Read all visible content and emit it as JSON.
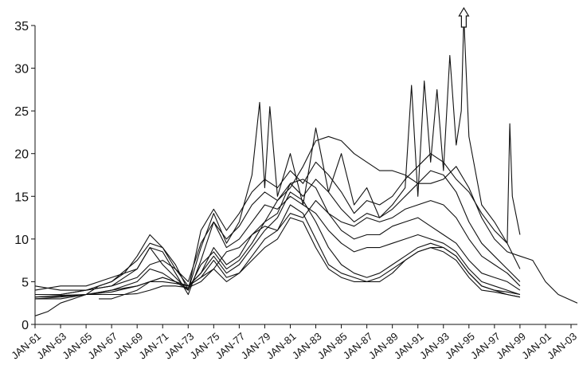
{
  "chart_data": {
    "type": "line",
    "title": "",
    "xlabel": "",
    "ylabel": "",
    "ylim": [
      0,
      35
    ],
    "yticks": [
      "0",
      "5",
      "10",
      "15",
      "20",
      "25",
      "30",
      "35"
    ],
    "xlim": [
      1961,
      2003.5
    ],
    "xticks": [
      {
        "label": "JAN-61",
        "x": 1961
      },
      {
        "label": "JAN-63",
        "x": 1963
      },
      {
        "label": "JAN-65",
        "x": 1965
      },
      {
        "label": "JAN-67",
        "x": 1967
      },
      {
        "label": "JAN-69",
        "x": 1969
      },
      {
        "label": "JAN-71",
        "x": 1971
      },
      {
        "label": "JAN-73",
        "x": 1973
      },
      {
        "label": "JAN-75",
        "x": 1975
      },
      {
        "label": "JAN-77",
        "x": 1977
      },
      {
        "label": "JAN-79",
        "x": 1979
      },
      {
        "label": "JAN-81",
        "x": 1981
      },
      {
        "label": "JAN-83",
        "x": 1983
      },
      {
        "label": "JAN-85",
        "x": 1985
      },
      {
        "label": "JAN-87",
        "x": 1987
      },
      {
        "label": "JAN-89",
        "x": 1989
      },
      {
        "label": "JAN-91",
        "x": 1991
      },
      {
        "label": "JAN-93",
        "x": 1993
      },
      {
        "label": "JAN-95",
        "x": 1995
      },
      {
        "label": "JAN-97",
        "x": 1997
      },
      {
        "label": "JAN-99",
        "x": 1999
      },
      {
        "label": "JAN-01",
        "x": 2001
      },
      {
        "label": "JAN-03",
        "x": 2003
      }
    ],
    "legend": "none",
    "grid": false,
    "line_color": "#111111",
    "annotation": {
      "type": "up-arrow",
      "x": 1994.6,
      "y": 36.5,
      "meaning": "series exceeds the axis maximum"
    },
    "series": [
      {
        "x": [
          1961,
          1963,
          1965,
          1967,
          1968,
          1969,
          1970,
          1971,
          1972,
          1973,
          1974,
          1975,
          1976,
          1977,
          1978,
          1979,
          1980,
          1981,
          1982,
          1983,
          1984,
          1985,
          1986,
          1987,
          1988,
          1989,
          1990,
          1991,
          1992,
          1993,
          1994,
          1995,
          1996,
          1997,
          1998,
          1999,
          2000,
          2001,
          2002,
          2003.5
        ],
        "y": [
          3.2,
          3.4,
          3.5,
          3.5,
          3.5,
          3.6,
          4.0,
          4.5,
          4.5,
          4.3,
          5.0,
          6.5,
          8.5,
          9.0,
          10.5,
          12.0,
          14.5,
          16.0,
          18.5,
          21.5,
          22.0,
          21.5,
          20.0,
          19.0,
          18.0,
          18.0,
          17.5,
          16.5,
          16.5,
          17.0,
          18.5,
          16.0,
          12.5,
          10.0,
          8.5,
          8.0,
          7.5,
          5.0,
          3.5,
          2.5
        ]
      },
      {
        "x": [
          1961,
          1962,
          1963,
          1964,
          1965,
          1966,
          1967,
          1968,
          1969,
          1970,
          1971,
          1972,
          1973,
          1974,
          1975,
          1976,
          1977,
          1978,
          1979,
          1980,
          1981,
          1982,
          1983,
          1984,
          1985,
          1986,
          1987,
          1988,
          1989,
          1990,
          1991,
          1992,
          1993,
          1994,
          1995,
          1996,
          1997,
          1998,
          1999
        ],
        "y": [
          1.0,
          1.5,
          2.5,
          3.0,
          3.5,
          4.5,
          5.0,
          6.0,
          8.0,
          10.5,
          9.0,
          7.0,
          4.0,
          11.0,
          13.5,
          11.0,
          13.0,
          15.5,
          17.0,
          16.0,
          18.0,
          16.5,
          19.0,
          17.5,
          15.5,
          13.0,
          14.5,
          14.0,
          15.0,
          17.0,
          18.5,
          20.0,
          19.0,
          17.0,
          15.5,
          13.0,
          11.0,
          9.5,
          6.5
        ]
      },
      {
        "x": [
          1961,
          1963,
          1965,
          1967,
          1969,
          1970,
          1971,
          1972,
          1973,
          1974,
          1975,
          1976,
          1977,
          1978,
          1979,
          1980,
          1981,
          1982,
          1983,
          1984,
          1985,
          1986,
          1987,
          1988,
          1989,
          1990,
          1991,
          1992,
          1993,
          1994,
          1995,
          1996,
          1997,
          1998,
          1999
        ],
        "y": [
          4.5,
          4.0,
          4.0,
          4.5,
          6.5,
          9.0,
          8.5,
          6.0,
          3.5,
          7.5,
          12.0,
          10.0,
          11.5,
          14.0,
          15.5,
          14.5,
          16.5,
          15.0,
          17.0,
          15.5,
          13.5,
          12.0,
          13.0,
          12.5,
          13.5,
          15.0,
          16.5,
          18.0,
          17.5,
          15.5,
          12.0,
          9.5,
          8.0,
          6.5,
          5.0
        ]
      },
      {
        "x": [
          1961,
          1963,
          1965,
          1967,
          1969,
          1970,
          1971,
          1972,
          1973,
          1974,
          1975,
          1976,
          1977,
          1978,
          1979,
          1980,
          1981,
          1982,
          1983,
          1984,
          1985,
          1986,
          1987,
          1988,
          1989,
          1990,
          1991,
          1992,
          1993,
          1994,
          1995,
          1996,
          1997,
          1998,
          1999
        ],
        "y": [
          3.5,
          3.5,
          4.0,
          5.0,
          7.5,
          9.5,
          9.0,
          6.5,
          4.5,
          6.0,
          9.0,
          7.0,
          8.0,
          10.5,
          11.5,
          11.0,
          13.0,
          12.5,
          14.5,
          13.0,
          12.0,
          11.5,
          12.5,
          12.0,
          12.5,
          13.5,
          14.0,
          14.5,
          14.0,
          12.5,
          10.0,
          8.0,
          7.0,
          6.0,
          4.5
        ]
      },
      {
        "x": [
          1961,
          1963,
          1965,
          1967,
          1969,
          1970,
          1971,
          1972,
          1973,
          1974,
          1975,
          1976,
          1977,
          1978,
          1979,
          1980,
          1981,
          1982,
          1983,
          1984,
          1985,
          1986,
          1987,
          1988,
          1989,
          1990,
          1991,
          1992,
          1993,
          1994,
          1995,
          1996,
          1997,
          1998,
          1999
        ],
        "y": [
          3.0,
          3.0,
          3.5,
          4.0,
          5.0,
          6.5,
          6.0,
          5.0,
          4.0,
          7.0,
          8.5,
          6.5,
          7.5,
          9.5,
          12.0,
          13.0,
          16.5,
          17.0,
          16.0,
          13.0,
          11.0,
          10.0,
          10.5,
          10.5,
          11.5,
          12.0,
          12.5,
          11.5,
          10.5,
          9.5,
          7.5,
          6.0,
          5.5,
          5.0,
          4.0
        ]
      },
      {
        "x": [
          1961,
          1963,
          1965,
          1967,
          1969,
          1970,
          1971,
          1972,
          1973,
          1974,
          1975,
          1976,
          1977,
          1978,
          1979,
          1980,
          1981,
          1982,
          1983,
          1984,
          1985,
          1986,
          1987,
          1988,
          1989,
          1990,
          1991,
          1992,
          1993,
          1994,
          1995,
          1996,
          1997,
          1998,
          1999
        ],
        "y": [
          3.5,
          3.5,
          4.0,
          4.5,
          5.5,
          7.0,
          7.5,
          6.5,
          5.0,
          9.5,
          12.0,
          9.0,
          10.0,
          12.0,
          14.0,
          13.5,
          15.0,
          14.0,
          13.0,
          11.0,
          9.5,
          8.5,
          9.0,
          9.0,
          9.5,
          10.0,
          10.5,
          10.0,
          9.5,
          8.5,
          6.5,
          5.0,
          4.5,
          4.0,
          3.5
        ]
      },
      {
        "x": [
          1961,
          1963,
          1965,
          1967,
          1969,
          1970,
          1971,
          1972,
          1973,
          1974,
          1975,
          1976,
          1977,
          1978,
          1979,
          1980,
          1981,
          1982,
          1983,
          1984,
          1985,
          1986,
          1987,
          1988,
          1989,
          1990,
          1991,
          1992,
          1993,
          1994,
          1995,
          1996,
          1997,
          1998,
          1999
        ],
        "y": [
          3.0,
          3.2,
          3.5,
          4.0,
          4.5,
          5.0,
          5.5,
          5.0,
          4.5,
          6.0,
          8.0,
          6.0,
          7.0,
          9.0,
          11.0,
          12.5,
          15.5,
          14.5,
          12.0,
          9.0,
          7.0,
          6.0,
          5.5,
          6.0,
          7.0,
          8.0,
          9.0,
          9.5,
          9.0,
          8.0,
          6.0,
          4.5,
          4.0,
          3.8,
          3.5
        ]
      },
      {
        "x": [
          1961,
          1963,
          1965,
          1967,
          1969,
          1970,
          1971,
          1972,
          1973,
          1974,
          1975,
          1976,
          1977,
          1978,
          1979,
          1980,
          1981,
          1982,
          1983,
          1984,
          1985,
          1986,
          1987,
          1988,
          1989,
          1990,
          1991,
          1992,
          1993,
          1994,
          1995,
          1996,
          1997,
          1998,
          1999
        ],
        "y": [
          3.2,
          3.3,
          3.5,
          3.8,
          4.5,
          5.0,
          5.0,
          4.8,
          4.5,
          5.5,
          7.5,
          5.5,
          6.0,
          8.0,
          10.0,
          11.0,
          14.0,
          13.0,
          10.0,
          7.0,
          6.0,
          5.5,
          5.0,
          5.0,
          6.0,
          7.5,
          8.5,
          9.0,
          8.5,
          7.5,
          5.5,
          4.0,
          3.8,
          3.5,
          3.2
        ]
      },
      {
        "x": [
          1966,
          1967,
          1968,
          1969,
          1970,
          1971,
          1972,
          1973,
          1974,
          1975,
          1976,
          1977,
          1978,
          1979,
          1980,
          1981,
          1982,
          1983,
          1984,
          1985,
          1986,
          1987,
          1988,
          1989,
          1990,
          1991,
          1992,
          1993,
          1994,
          1995,
          1996,
          1997,
          1998,
          1999
        ],
        "y": [
          3.0,
          3.0,
          3.5,
          4.0,
          5.0,
          5.5,
          5.0,
          4.5,
          5.5,
          6.5,
          5.0,
          6.0,
          7.5,
          9.0,
          10.0,
          12.5,
          12.0,
          9.0,
          6.5,
          5.5,
          5.0,
          5.0,
          5.5,
          6.5,
          7.5,
          8.5,
          9.0,
          9.0,
          8.0,
          6.0,
          4.5,
          4.0,
          3.5,
          3.2
        ]
      },
      {
        "x": [
          1961,
          1963,
          1965,
          1967,
          1969,
          1970,
          1971,
          1972,
          1973,
          1974,
          1975,
          1976,
          1977,
          1978,
          1978.6,
          1979,
          1979.4,
          1980,
          1981,
          1982,
          1983,
          1984,
          1985,
          1986,
          1987,
          1988,
          1989,
          1990,
          1990.5,
          1991,
          1991.5,
          1992,
          1992.5,
          1993,
          1993.5,
          1994,
          1994.4,
          1994.6,
          1995,
          1996,
          1997,
          1998,
          1998.2,
          1998.4,
          1999
        ],
        "y": [
          4.0,
          4.5,
          4.5,
          5.5,
          6.5,
          9.0,
          7.0,
          5.5,
          4.0,
          9.0,
          13.0,
          9.5,
          12.0,
          17.5,
          26.0,
          16.0,
          25.5,
          15.0,
          20.0,
          14.0,
          23.0,
          15.5,
          20.0,
          14.0,
          16.0,
          12.5,
          14.0,
          16.0,
          28.0,
          15.0,
          28.5,
          19.0,
          27.5,
          18.0,
          31.5,
          21.0,
          25.0,
          36.5,
          22.0,
          14.0,
          12.0,
          9.5,
          23.5,
          15.0,
          10.5
        ]
      }
    ]
  }
}
